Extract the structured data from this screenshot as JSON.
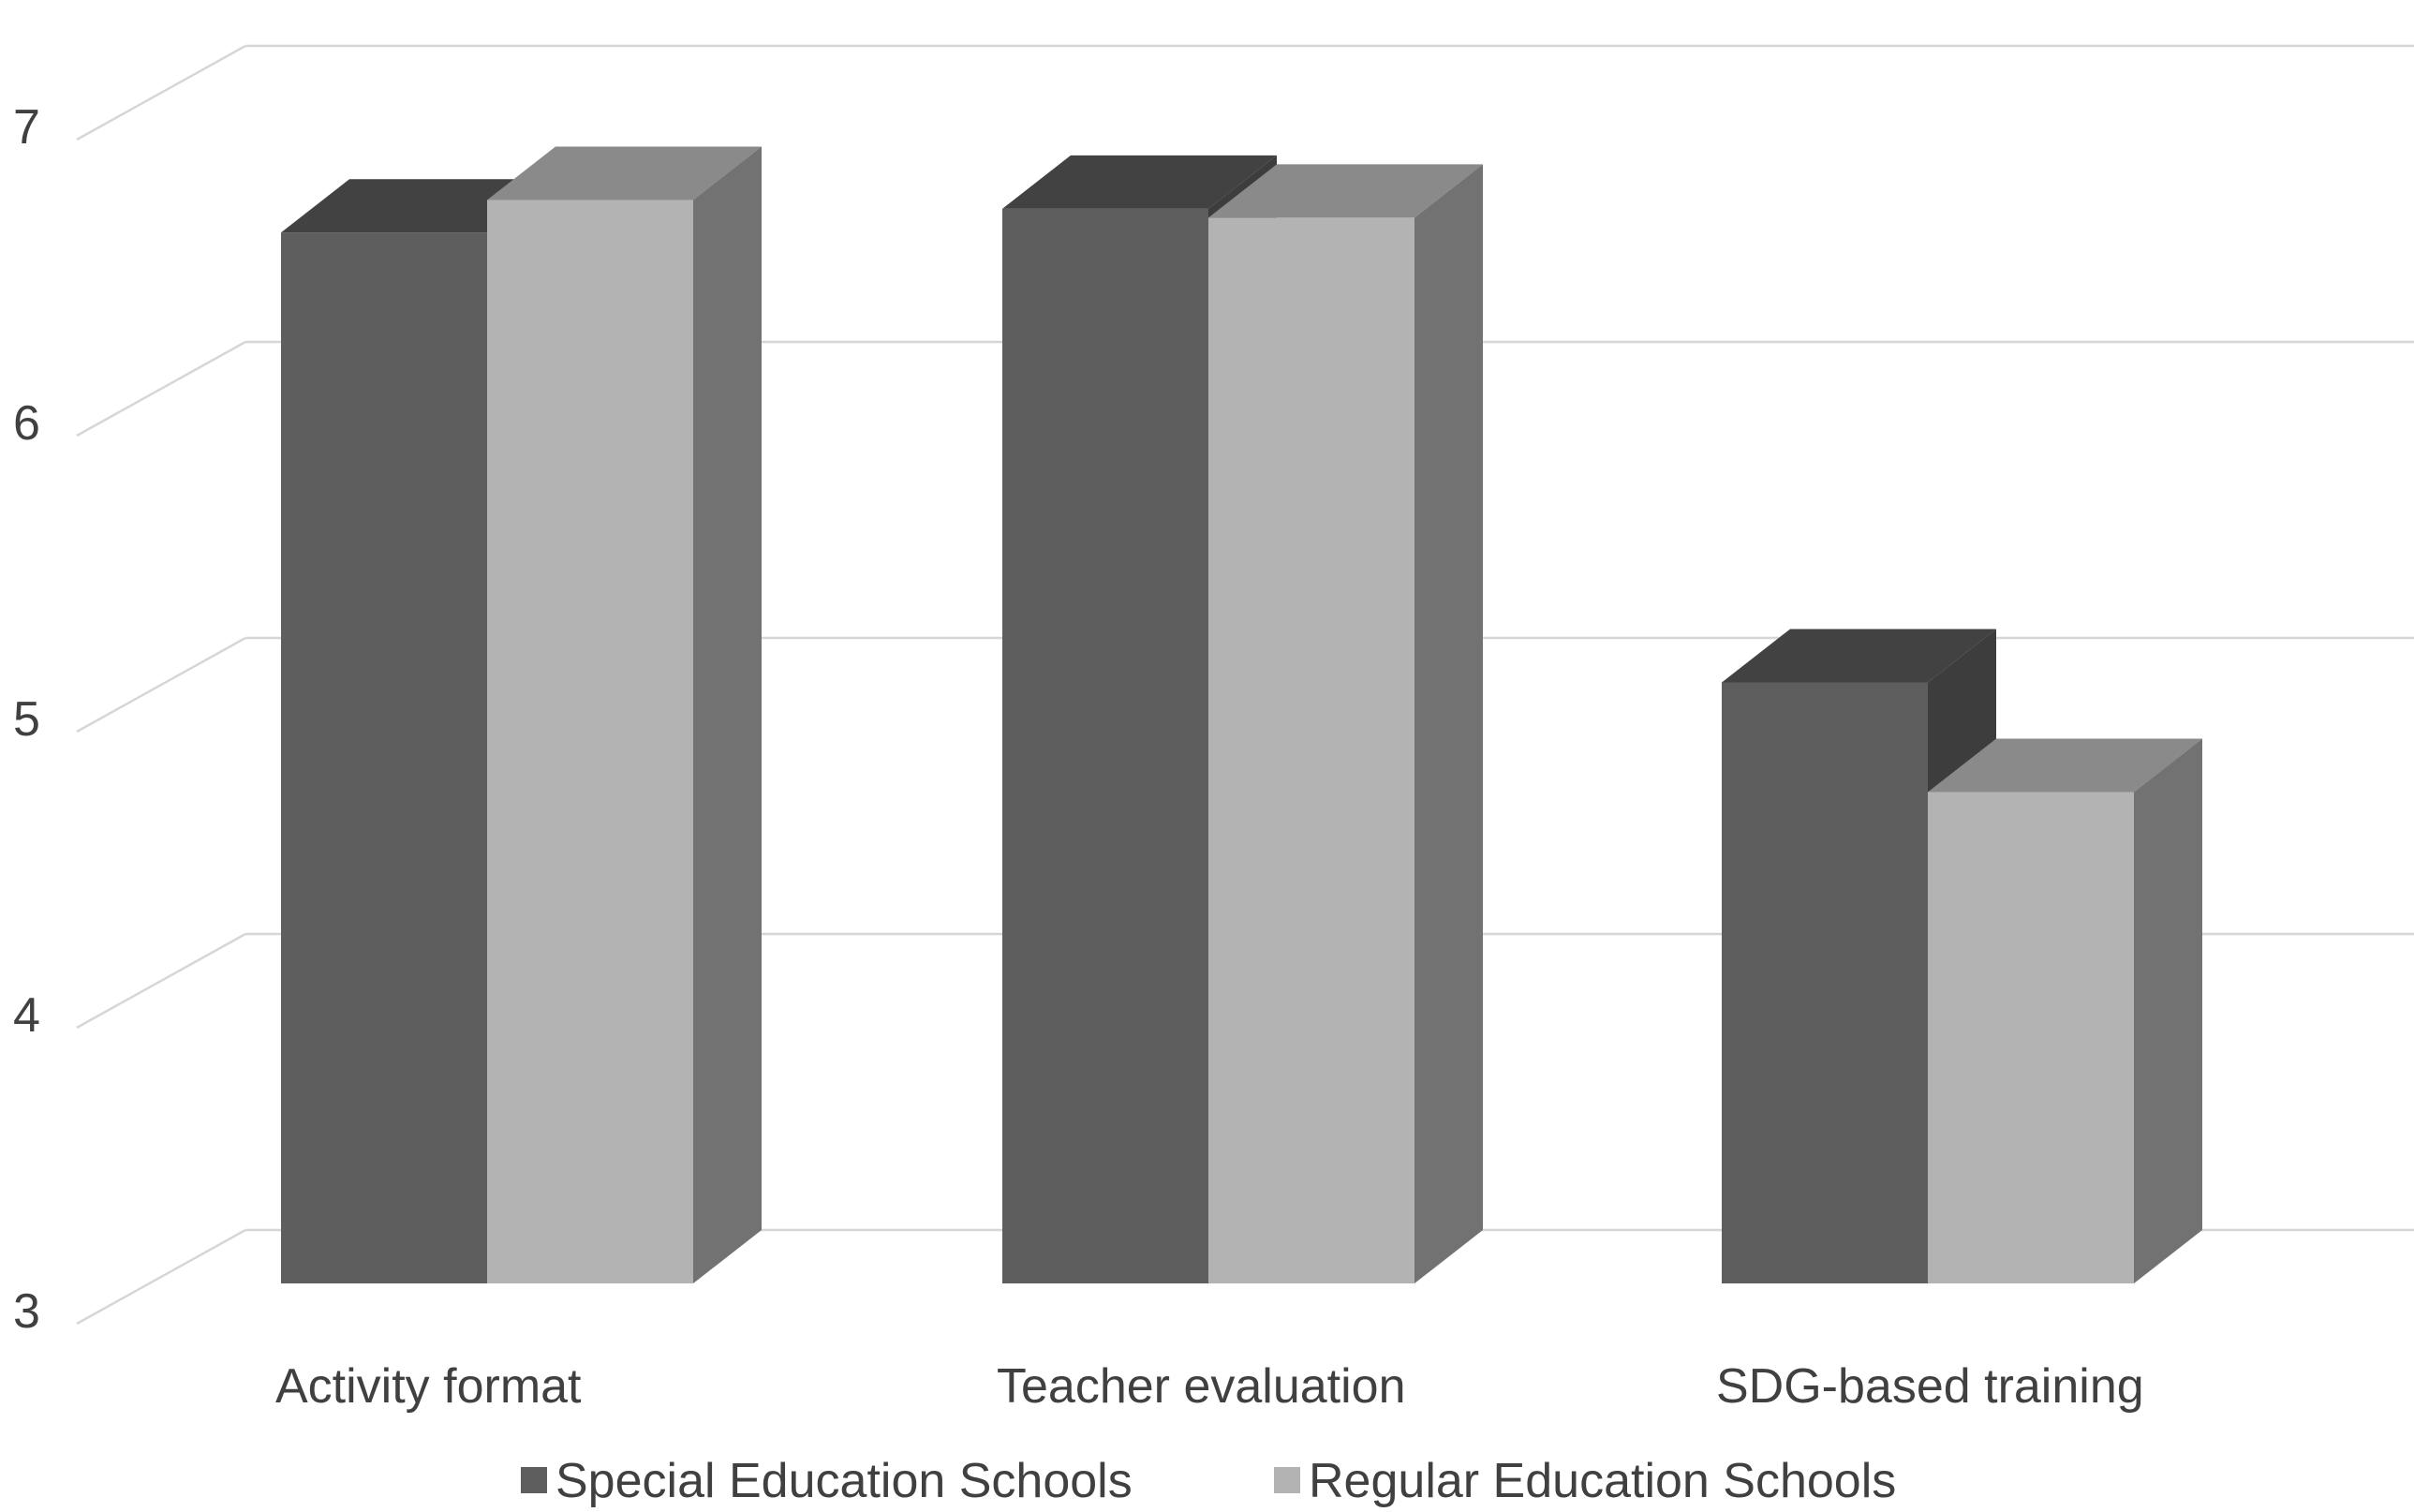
{
  "chart_data": {
    "type": "bar",
    "title": "",
    "xlabel": "",
    "ylabel": "",
    "categories": [
      "Activity format",
      "Teacher evaluation",
      "SDG-based training"
    ],
    "series": [
      {
        "name": "Special Education Schools",
        "values": [
          6.55,
          6.63,
          5.03
        ]
      },
      {
        "name": "Regular Education Schools",
        "values": [
          6.66,
          6.6,
          4.66
        ]
      }
    ],
    "ylim": [
      3,
      7
    ],
    "yticks": [
      "3",
      "4",
      "5",
      "6",
      "7"
    ],
    "grid": true,
    "legend_position": "bottom",
    "style": "3d-columns",
    "colors": {
      "special_front": "#5e5e5e",
      "special_top": "#424242",
      "special_side": "#3d3d3d",
      "regular_front": "#b3b3b3",
      "regular_top": "#8a8a8a",
      "regular_side": "#727272",
      "grid": "#d6d6d6"
    }
  }
}
